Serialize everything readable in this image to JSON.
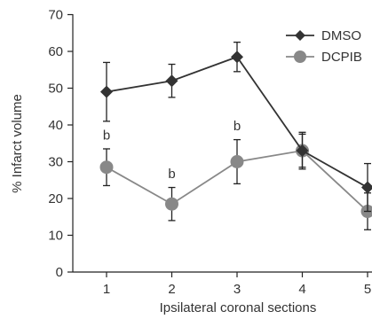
{
  "chart_data": {
    "type": "line",
    "xlabel": "Ipsilateral coronal sections",
    "ylabel": "% Infarct volume",
    "x": [
      1,
      2,
      3,
      4,
      5
    ],
    "x_tick_labels": [
      "1",
      "2",
      "3",
      "4",
      "5"
    ],
    "ylim": [
      0,
      70
    ],
    "y_ticks": [
      0,
      10,
      20,
      30,
      40,
      50,
      60,
      70
    ],
    "y_tick_labels": [
      "0",
      "10",
      "20",
      "30",
      "40",
      "50",
      "60",
      "70"
    ],
    "grid": false,
    "legend_position": "top-right",
    "series": [
      {
        "name": "DMSO",
        "marker": "diamond",
        "color": "#333333",
        "values": [
          49,
          52,
          58.5,
          33,
          23
        ],
        "error": [
          8,
          4.5,
          4,
          5,
          6.5
        ]
      },
      {
        "name": "DCPIB",
        "marker": "circle",
        "color": "#888888",
        "values": [
          28.5,
          18.5,
          30,
          33,
          16.5
        ],
        "error": [
          5,
          4.5,
          6,
          4.5,
          5
        ]
      }
    ],
    "annotations": [
      {
        "text": "b",
        "x": 1,
        "y": 36
      },
      {
        "text": "b",
        "x": 2,
        "y": 25.5
      },
      {
        "text": "b",
        "x": 3,
        "y": 38.5
      }
    ]
  }
}
